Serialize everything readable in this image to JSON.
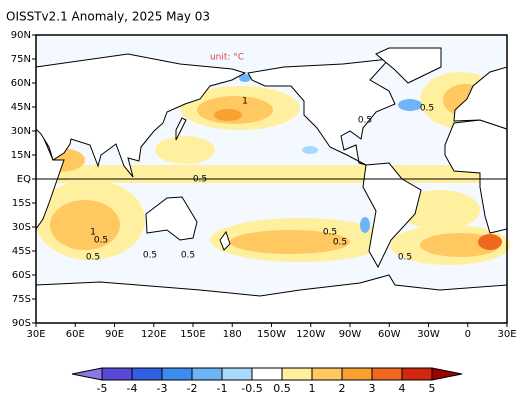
{
  "header": {
    "title": "OISSTv2.1 Anomaly, 2025 May 03",
    "unit": "unit: °C"
  },
  "axes": {
    "lat_labels": [
      "90N",
      "75N",
      "60N",
      "45N",
      "30N",
      "15N",
      "EQ",
      "15S",
      "30S",
      "45S",
      "60S",
      "75S",
      "90S"
    ],
    "lon_labels": [
      "30E",
      "60E",
      "90E",
      "120E",
      "150E",
      "180",
      "150W",
      "120W",
      "90W",
      "60W",
      "30W",
      "0",
      "30E"
    ]
  },
  "contour_labels": [
    "1",
    "0.5",
    "0.5",
    "0.5",
    "1",
    "0.5",
    "0.5",
    "0.5",
    "0.5",
    "0.5",
    "0.5",
    "0.5"
  ],
  "colorbar": {
    "labels": [
      "-5",
      "-4",
      "-3",
      "-2",
      "-1",
      "-0.5",
      "0.5",
      "1",
      "2",
      "3",
      "4",
      "5"
    ]
  }
}
